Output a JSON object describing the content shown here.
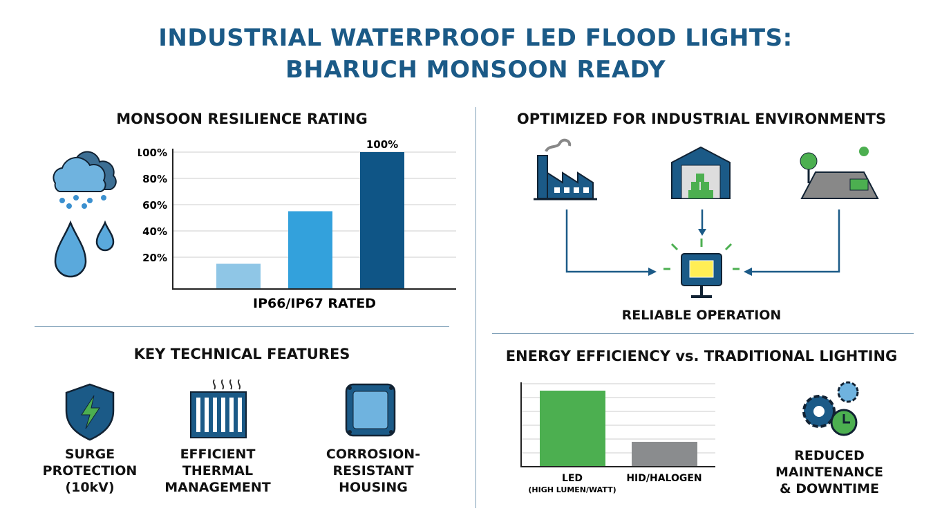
{
  "title_line1": "INDUSTRIAL WATERPROOF LED FLOOD LIGHTS:",
  "title_line2": "BHARUCH MONSOON READY",
  "resilience": {
    "heading": "MONSOON RESILIENCE RATING",
    "icons": [
      "rain-cloud-icon",
      "water-drops-icon"
    ]
  },
  "environments": {
    "heading": "OPTIMIZED FOR INDUSTRIAL ENVIRONMENTS",
    "icons": [
      "factory-icon",
      "warehouse-icon",
      "outdoor-yard-icon",
      "flood-light-icon"
    ],
    "result_label": "RELIABLE OPERATION"
  },
  "features": {
    "heading": "KEY TECHNICAL FEATURES",
    "items": [
      {
        "icon": "surge-shield-icon",
        "line1": "SURGE",
        "line2": "PROTECTION",
        "line3": "(10kV)"
      },
      {
        "icon": "heatsink-icon",
        "line1": "EFFICIENT",
        "line2": "THERMAL",
        "line3": "MANAGEMENT"
      },
      {
        "icon": "housing-icon",
        "line1": "CORROSION-",
        "line2": "RESISTANT",
        "line3": "HOUSING"
      }
    ]
  },
  "energy": {
    "heading": "ENERGY EFFICIENCY vs. TRADITIONAL LIGHTING",
    "maintenance": {
      "icon": "gears-clock-icon",
      "line1": "REDUCED",
      "line2": "MAINTENANCE",
      "line3": "& DOWNTIME"
    }
  },
  "colors": {
    "title": "#1b5a87",
    "bar_light": "#8fc6e6",
    "bar_mid": "#33a1dc",
    "bar_dark": "#0f5586",
    "led": "#4caf50",
    "hid": "#8a8c8e"
  },
  "chart_data": [
    {
      "type": "bar",
      "title": "MONSOON RESILIENCE RATING",
      "xlabel": "IP66/IP67 RATED",
      "ylabel": "",
      "yticks": [
        "20%",
        "40%",
        "60%",
        "80%",
        "100%"
      ],
      "ylim": [
        0,
        100
      ],
      "values": [
        15,
        55,
        100
      ],
      "data_labels": [
        "",
        "",
        "100%"
      ],
      "grid": true
    },
    {
      "type": "bar",
      "title": "ENERGY EFFICIENCY vs. TRADITIONAL LIGHTING",
      "categories": [
        "LED",
        "HID/HALOGEN"
      ],
      "category_sublabels": [
        "(HIGH LUMEN/WATT)",
        ""
      ],
      "values": [
        5.5,
        1.8
      ],
      "ylim": [
        0,
        6
      ],
      "grid": true
    }
  ]
}
